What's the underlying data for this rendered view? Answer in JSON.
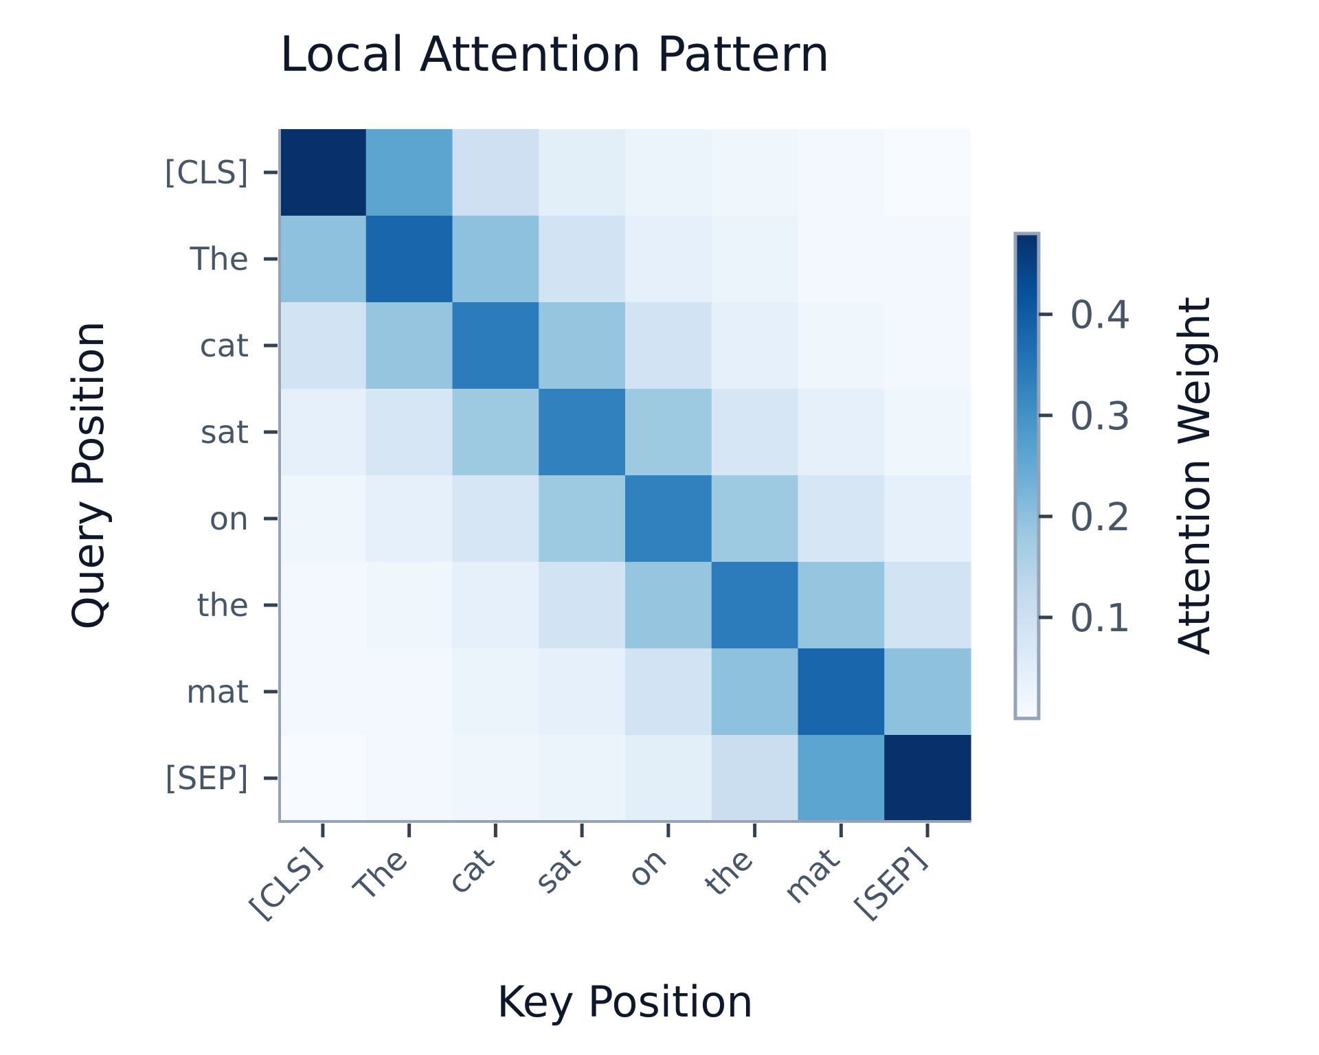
{
  "chart_data": {
    "type": "heatmap",
    "title": "Local Attention Pattern",
    "xlabel": "Key Position",
    "ylabel": "Query Position",
    "x_categories": [
      "[CLS]",
      "The",
      "cat",
      "sat",
      "on",
      "the",
      "mat",
      "[SEP]"
    ],
    "y_categories": [
      "[CLS]",
      "The",
      "cat",
      "sat",
      "on",
      "the",
      "mat",
      "[SEP]"
    ],
    "values": [
      [
        0.48,
        0.26,
        0.1,
        0.05,
        0.03,
        0.02,
        0.01,
        0.0
      ],
      [
        0.2,
        0.38,
        0.2,
        0.09,
        0.04,
        0.03,
        0.01,
        0.01
      ],
      [
        0.09,
        0.19,
        0.34,
        0.19,
        0.09,
        0.04,
        0.02,
        0.01
      ],
      [
        0.04,
        0.08,
        0.18,
        0.33,
        0.18,
        0.08,
        0.04,
        0.02
      ],
      [
        0.02,
        0.04,
        0.08,
        0.18,
        0.33,
        0.18,
        0.08,
        0.04
      ],
      [
        0.01,
        0.02,
        0.04,
        0.09,
        0.19,
        0.34,
        0.19,
        0.09
      ],
      [
        0.01,
        0.01,
        0.03,
        0.04,
        0.09,
        0.2,
        0.38,
        0.2
      ],
      [
        0.0,
        0.01,
        0.02,
        0.03,
        0.05,
        0.11,
        0.26,
        0.48
      ]
    ],
    "colorbar": {
      "label": "Attention Weight",
      "range": [
        0.0,
        0.48
      ],
      "ticks": [
        0.1,
        0.2,
        0.3,
        0.4
      ],
      "tick_labels": [
        "0.1",
        "0.2",
        "0.3",
        "0.4"
      ]
    },
    "colormap": [
      "#f7fbff",
      "#deebf7",
      "#c6dbef",
      "#9ecae1",
      "#6baed6",
      "#4292c6",
      "#2171b5",
      "#08519c",
      "#08306b"
    ],
    "grid": false
  }
}
